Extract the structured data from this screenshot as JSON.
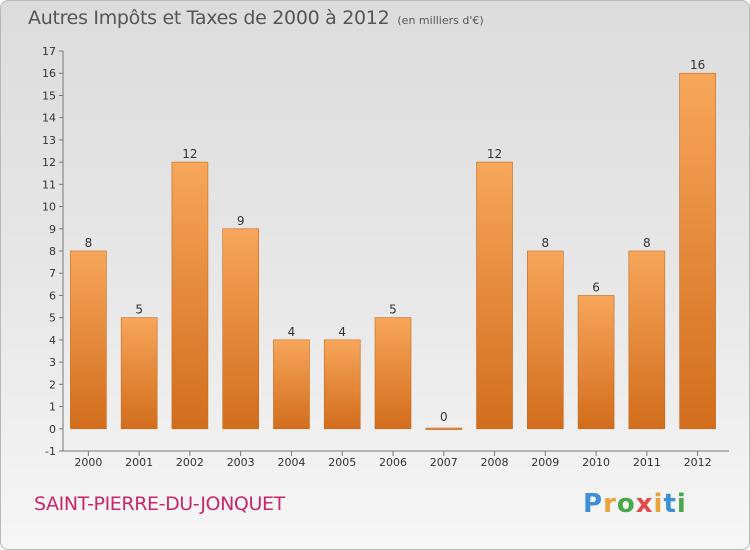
{
  "title": "Autres Impôts et Taxes de 2000 à 2012",
  "unit_note": "(en milliers d'€)",
  "commune": "SAINT-PIERRE-DU-JONQUET",
  "logo": {
    "letters": [
      "P",
      "r",
      "o",
      "x",
      "i",
      "t",
      "i"
    ],
    "colors": [
      "#3d8fd6",
      "#e8a33a",
      "#4aa84a",
      "#e34b4b",
      "#e8a33a",
      "#3d8fd6",
      "#4aa84a"
    ]
  },
  "colors": {
    "bar_light": "#f7a65a",
    "bar_dark": "#d26d1c",
    "commune": "#c8276b"
  },
  "chart_data": {
    "type": "bar",
    "categories": [
      "2000",
      "2001",
      "2002",
      "2003",
      "2004",
      "2005",
      "2006",
      "2007",
      "2008",
      "2009",
      "2010",
      "2011",
      "2012"
    ],
    "values": [
      8,
      5,
      12,
      9,
      4,
      4,
      5,
      0,
      12,
      8,
      6,
      8,
      16
    ],
    "data_labels": [
      "8",
      "5",
      "12",
      "9",
      "4",
      "4",
      "5",
      "0",
      "12",
      "8",
      "6",
      "8",
      "16"
    ],
    "y_ticks": [
      "-1",
      "0",
      "1",
      "2",
      "3",
      "4",
      "5",
      "6",
      "7",
      "8",
      "9",
      "10",
      "11",
      "12",
      "13",
      "14",
      "15",
      "16",
      "17"
    ],
    "ylim": [
      -1,
      17
    ],
    "grid": false,
    "legend": false
  }
}
